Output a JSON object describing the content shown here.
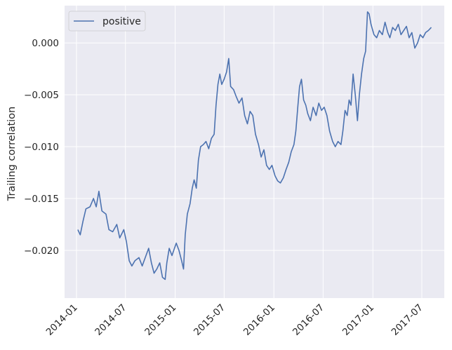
{
  "chart_data": {
    "type": "line",
    "title": "",
    "xlabel": "",
    "ylabel": "Trailing correlation",
    "x_ticks": [
      "2014-01",
      "2014-07",
      "2015-01",
      "2015-07",
      "2016-01",
      "2016-07",
      "2017-01",
      "2017-07"
    ],
    "y_ticks": [
      "0.000",
      "−0.005",
      "−0.010",
      "−0.015",
      "−0.020"
    ],
    "y_tick_values": [
      0.0,
      -0.005,
      -0.01,
      -0.015,
      -0.02
    ],
    "xlim": [
      "2013-11-18",
      "2017-09-22"
    ],
    "ylim": [
      -0.0246,
      0.0036
    ],
    "grid": true,
    "legend_position": "top-left",
    "colors": {
      "background": "#eaeaf2",
      "grid": "#ffffff",
      "line": "#4c72b0"
    },
    "series": [
      {
        "name": "positive",
        "points": [
          [
            "2014-01-06",
            -0.018
          ],
          [
            "2014-01-15",
            -0.0185
          ],
          [
            "2014-01-25",
            -0.0172
          ],
          [
            "2014-02-05",
            -0.016
          ],
          [
            "2014-02-20",
            -0.0158
          ],
          [
            "2014-03-05",
            -0.015
          ],
          [
            "2014-03-15",
            -0.0158
          ],
          [
            "2014-03-25",
            -0.0143
          ],
          [
            "2014-04-05",
            -0.0162
          ],
          [
            "2014-04-20",
            -0.0165
          ],
          [
            "2014-05-01",
            -0.018
          ],
          [
            "2014-05-15",
            -0.0182
          ],
          [
            "2014-05-30",
            -0.0175
          ],
          [
            "2014-06-10",
            -0.0188
          ],
          [
            "2014-06-25",
            -0.018
          ],
          [
            "2014-07-05",
            -0.0192
          ],
          [
            "2014-07-15",
            -0.021
          ],
          [
            "2014-07-25",
            -0.0215
          ],
          [
            "2014-08-05",
            -0.021
          ],
          [
            "2014-08-20",
            -0.0207
          ],
          [
            "2014-09-01",
            -0.0215
          ],
          [
            "2014-09-15",
            -0.0205
          ],
          [
            "2014-09-25",
            -0.0198
          ],
          [
            "2014-10-05",
            -0.0212
          ],
          [
            "2014-10-15",
            -0.0222
          ],
          [
            "2014-10-25",
            -0.0218
          ],
          [
            "2014-11-05",
            -0.0212
          ],
          [
            "2014-11-15",
            -0.0226
          ],
          [
            "2014-11-25",
            -0.0228
          ],
          [
            "2014-12-01",
            -0.0212
          ],
          [
            "2014-12-10",
            -0.0198
          ],
          [
            "2014-12-20",
            -0.0205
          ],
          [
            "2015-01-05",
            -0.0193
          ],
          [
            "2015-01-15",
            -0.02
          ],
          [
            "2015-01-25",
            -0.021
          ],
          [
            "2015-02-01",
            -0.0218
          ],
          [
            "2015-02-07",
            -0.0185
          ],
          [
            "2015-02-15",
            -0.0165
          ],
          [
            "2015-02-25",
            -0.0155
          ],
          [
            "2015-03-05",
            -0.014
          ],
          [
            "2015-03-12",
            -0.0132
          ],
          [
            "2015-03-20",
            -0.014
          ],
          [
            "2015-03-28",
            -0.0113
          ],
          [
            "2015-04-05",
            -0.01
          ],
          [
            "2015-04-15",
            -0.0098
          ],
          [
            "2015-04-25",
            -0.0095
          ],
          [
            "2015-05-05",
            -0.0102
          ],
          [
            "2015-05-15",
            -0.0092
          ],
          [
            "2015-05-25",
            -0.0088
          ],
          [
            "2015-06-01",
            -0.006
          ],
          [
            "2015-06-08",
            -0.004
          ],
          [
            "2015-06-15",
            -0.003
          ],
          [
            "2015-06-22",
            -0.004
          ],
          [
            "2015-07-01",
            -0.0035
          ],
          [
            "2015-07-10",
            -0.0028
          ],
          [
            "2015-07-18",
            -0.0015
          ],
          [
            "2015-07-25",
            -0.0042
          ],
          [
            "2015-08-05",
            -0.0045
          ],
          [
            "2015-08-15",
            -0.0052
          ],
          [
            "2015-08-25",
            -0.0058
          ],
          [
            "2015-09-05",
            -0.0053
          ],
          [
            "2015-09-15",
            -0.007
          ],
          [
            "2015-09-25",
            -0.0078
          ],
          [
            "2015-10-05",
            -0.0066
          ],
          [
            "2015-10-15",
            -0.007
          ],
          [
            "2015-10-25",
            -0.0088
          ],
          [
            "2015-11-05",
            -0.0098
          ],
          [
            "2015-11-15",
            -0.011
          ],
          [
            "2015-11-25",
            -0.0103
          ],
          [
            "2015-12-05",
            -0.0118
          ],
          [
            "2015-12-15",
            -0.0122
          ],
          [
            "2015-12-25",
            -0.0118
          ],
          [
            "2016-01-05",
            -0.0128
          ],
          [
            "2016-01-15",
            -0.0133
          ],
          [
            "2016-01-25",
            -0.0135
          ],
          [
            "2016-02-05",
            -0.013
          ],
          [
            "2016-02-15",
            -0.0122
          ],
          [
            "2016-02-25",
            -0.0115
          ],
          [
            "2016-03-05",
            -0.0105
          ],
          [
            "2016-03-15",
            -0.0098
          ],
          [
            "2016-03-22",
            -0.0085
          ],
          [
            "2016-03-30",
            -0.006
          ],
          [
            "2016-04-05",
            -0.0042
          ],
          [
            "2016-04-12",
            -0.0035
          ],
          [
            "2016-04-20",
            -0.0055
          ],
          [
            "2016-04-28",
            -0.006
          ],
          [
            "2016-05-05",
            -0.0068
          ],
          [
            "2016-05-15",
            -0.0075
          ],
          [
            "2016-05-25",
            -0.0062
          ],
          [
            "2016-06-05",
            -0.007
          ],
          [
            "2016-06-15",
            -0.0058
          ],
          [
            "2016-06-25",
            -0.0065
          ],
          [
            "2016-07-05",
            -0.0062
          ],
          [
            "2016-07-15",
            -0.007
          ],
          [
            "2016-07-25",
            -0.0085
          ],
          [
            "2016-08-05",
            -0.0095
          ],
          [
            "2016-08-15",
            -0.01
          ],
          [
            "2016-08-25",
            -0.0095
          ],
          [
            "2016-09-05",
            -0.0098
          ],
          [
            "2016-09-12",
            -0.0085
          ],
          [
            "2016-09-20",
            -0.0065
          ],
          [
            "2016-09-28",
            -0.007
          ],
          [
            "2016-10-05",
            -0.0055
          ],
          [
            "2016-10-12",
            -0.006
          ],
          [
            "2016-10-20",
            -0.003
          ],
          [
            "2016-10-28",
            -0.005
          ],
          [
            "2016-11-05",
            -0.0075
          ],
          [
            "2016-11-12",
            -0.005
          ],
          [
            "2016-11-20",
            -0.003
          ],
          [
            "2016-11-28",
            -0.0015
          ],
          [
            "2016-12-05",
            -0.0008
          ],
          [
            "2016-12-12",
            0.003
          ],
          [
            "2016-12-18",
            0.0028
          ],
          [
            "2016-12-25",
            0.0018
          ],
          [
            "2017-01-05",
            0.0008
          ],
          [
            "2017-01-15",
            0.0005
          ],
          [
            "2017-01-25",
            0.0012
          ],
          [
            "2017-02-05",
            0.0008
          ],
          [
            "2017-02-15",
            0.002
          ],
          [
            "2017-02-25",
            0.001
          ],
          [
            "2017-03-05",
            0.0005
          ],
          [
            "2017-03-15",
            0.0015
          ],
          [
            "2017-03-25",
            0.0012
          ],
          [
            "2017-04-05",
            0.0018
          ],
          [
            "2017-04-15",
            0.0008
          ],
          [
            "2017-04-25",
            0.0012
          ],
          [
            "2017-05-05",
            0.0016
          ],
          [
            "2017-05-15",
            0.0005
          ],
          [
            "2017-05-25",
            0.001
          ],
          [
            "2017-06-05",
            -0.0005
          ],
          [
            "2017-06-15",
            0.0
          ],
          [
            "2017-06-25",
            0.0008
          ],
          [
            "2017-07-05",
            0.0005
          ],
          [
            "2017-07-15",
            0.001
          ],
          [
            "2017-07-25",
            0.0012
          ],
          [
            "2017-08-05",
            0.0015
          ]
        ]
      }
    ]
  }
}
